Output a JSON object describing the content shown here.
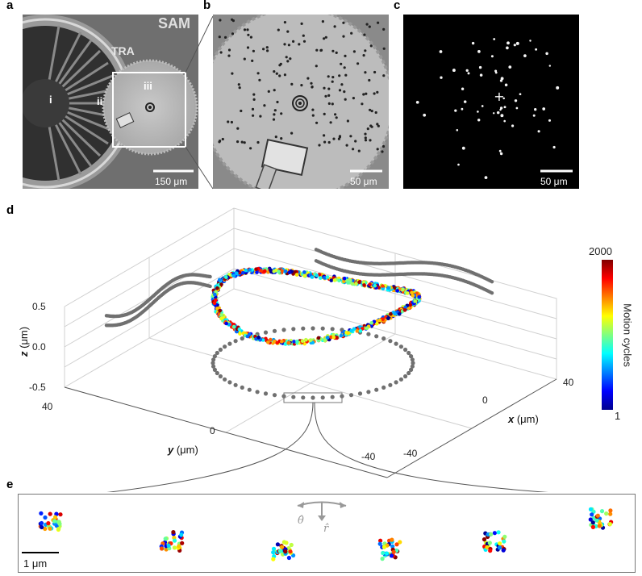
{
  "panels": {
    "a": {
      "letter": "a",
      "label_sam": "SAM",
      "label_tra": "TRA",
      "region_i": "i",
      "region_ii": "ii",
      "region_iii": "iii",
      "scalebar": "150 μm"
    },
    "b": {
      "letter": "b",
      "scalebar": "50 μm"
    },
    "c": {
      "letter": "c",
      "scalebar": "50 μm"
    },
    "d": {
      "letter": "d",
      "z_ticks": [
        "0.5",
        "0.0",
        "-0.5"
      ],
      "z_label_var": "z",
      "z_label_unit": " (μm)",
      "y_ticks": [
        "40",
        "0",
        "-40"
      ],
      "y_label_var": "y",
      "y_label_unit": " (μm)",
      "x_ticks": [
        "40",
        "0",
        "-40"
      ],
      "x_label_var": "x",
      "x_label_unit": " (μm)",
      "colorbar_max": "2000",
      "colorbar_min": "1",
      "colorbar_title": "Motion cycles"
    },
    "e": {
      "letter": "e",
      "theta_label": "θ̂",
      "r_label": "r̂",
      "scalebar": "1 μm"
    }
  },
  "colors": {
    "trace_grey": "#707070",
    "axis": "#888888",
    "jet_low": "#00008f",
    "jet_high": "#800000"
  }
}
